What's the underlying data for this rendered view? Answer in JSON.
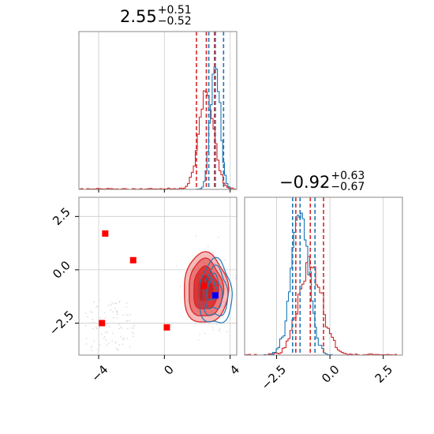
{
  "panel_titles": [
    {
      "value": "2.55",
      "plus": "+0.51",
      "minus": "−0.52"
    },
    {
      "value": "−0.92",
      "plus": "+0.63",
      "minus": "−0.67"
    }
  ],
  "colors": {
    "red": "#d62728",
    "blue": "#1f77b4",
    "red_fill": "#f08080",
    "marker_red": "#ff0000",
    "marker_blue": "#0000ff",
    "grid": "#cccccc",
    "frame": "#888888"
  },
  "chart_data": [
    {
      "type": "histogram",
      "panel": "x1-marginal",
      "xlim": [
        -5.2,
        4.4
      ],
      "series": [
        {
          "color": "red",
          "peak": 2.55,
          "quantiles": [
            1.95,
            2.55,
            3.05
          ]
        },
        {
          "color": "blue",
          "peak": 3.1,
          "quantiles": [
            2.7,
            3.1,
            3.6
          ]
        }
      ]
    },
    {
      "type": "scatter",
      "panel": "joint",
      "xlim": [
        -5.2,
        4.4
      ],
      "ylim": [
        -4.0,
        3.4
      ],
      "x_ticks": [
        -4,
        0,
        4
      ],
      "x_tick_labels": [
        "−4",
        "0",
        "4"
      ],
      "y_ticks": [
        2.5,
        0.0,
        -2.5
      ],
      "y_tick_labels": [
        "2.5",
        "0.0",
        "−2.5"
      ],
      "red_markers": [
        {
          "x": -3.6,
          "y": 1.7
        },
        {
          "x": -1.9,
          "y": 0.45
        },
        {
          "x": -3.8,
          "y": -2.5
        },
        {
          "x": 0.15,
          "y": -2.7
        },
        {
          "x": 2.4,
          "y": -0.75
        }
      ],
      "blue_markers": [
        {
          "x": 3.1,
          "y": -1.2
        }
      ],
      "contours": {
        "red": {
          "center": [
            2.5,
            -0.9
          ]
        },
        "blue": {
          "center": [
            3.1,
            -1.1
          ]
        }
      }
    },
    {
      "type": "histogram",
      "panel": "x2-marginal",
      "xlim": [
        -4.0,
        3.4
      ],
      "x_ticks": [
        -2.5,
        0.0,
        2.5
      ],
      "x_tick_labels": [
        "−2.5",
        "0.0",
        "2.5"
      ],
      "series": [
        {
          "color": "red",
          "peak": -0.92,
          "quantiles": [
            -1.6,
            -0.92,
            -0.3
          ]
        },
        {
          "color": "blue",
          "peak": -1.4,
          "quantiles": [
            -1.75,
            -1.4,
            -0.7
          ]
        }
      ]
    }
  ]
}
